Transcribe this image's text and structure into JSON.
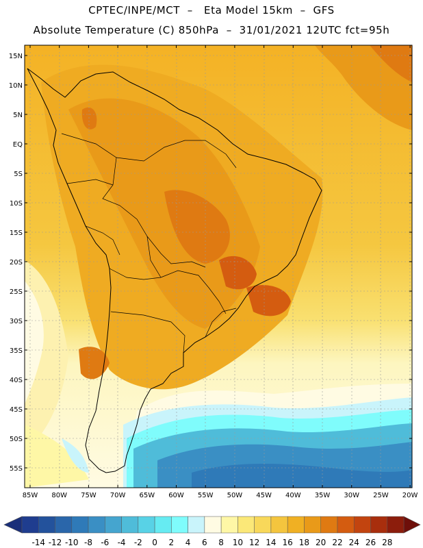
{
  "title_line1": "CPTEC/INPE/MCT  –   Eta Model 15km  –  GFS",
  "title_line2": "Absolute Temperature (C) 850hPa  –  31/01/2021 12UTC fct=95h",
  "lat_labels": [
    "15N",
    "10N",
    "5N",
    "EQ",
    "5S",
    "10S",
    "15S",
    "20S",
    "25S",
    "30S",
    "35S",
    "40S",
    "45S",
    "50S",
    "55S"
  ],
  "lon_labels": [
    "85W",
    "80W",
    "75W",
    "70W",
    "65W",
    "60W",
    "55W",
    "50W",
    "45W",
    "40W",
    "35W",
    "30W",
    "25W",
    "20W"
  ],
  "colorbar": {
    "labels": [
      "-14",
      "-12",
      "-10",
      "-8",
      "-6",
      "-4",
      "-2",
      "0",
      "2",
      "4",
      "6",
      "8",
      "10",
      "12",
      "14",
      "16",
      "18",
      "20",
      "22",
      "24",
      "26",
      "28"
    ],
    "colors": [
      "#1f3d8f",
      "#23529c",
      "#2a66aa",
      "#2f7ab8",
      "#3a8fc4",
      "#45a5cf",
      "#4fbcd9",
      "#58d2e6",
      "#66ebf2",
      "#7ffcfc",
      "#c9f4fb",
      "#fffbe3",
      "#fef7a6",
      "#fbe878",
      "#f8d85a",
      "#f4c53e",
      "#f0b023",
      "#e99a19",
      "#df7a12",
      "#d45c10",
      "#c2440f",
      "#a82e0d",
      "#8c1d0c"
    ],
    "end_low": "#1a2f7a",
    "end_high": "#6e0f0a"
  }
}
